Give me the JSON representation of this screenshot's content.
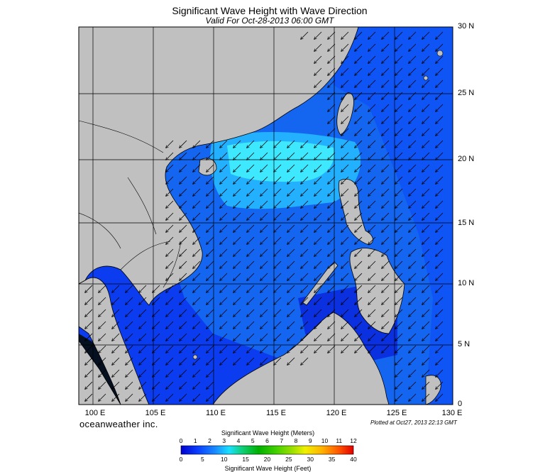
{
  "title": "Significant Wave Height with Wave Direction",
  "subtitle": "Valid For Oct-28-2013 06:00 GMT",
  "brand": "oceanweather inc.",
  "plotted": "Plotted at Oct27, 2013 22:13 GMT",
  "lat_labels": [
    "30 N",
    "25 N",
    "20 N",
    "15 N",
    "10 N",
    "5 N",
    "0"
  ],
  "lon_labels": [
    "100 E",
    "105 E",
    "110 E",
    "115 E",
    "120 E",
    "125 E",
    "130 E"
  ],
  "colorbar": {
    "meters_title": "Significant Wave Height (Meters)",
    "feet_title": "Significant Wave Height (Feet)",
    "meters_ticks": [
      "0",
      "1",
      "2",
      "3",
      "4",
      "5",
      "6",
      "7",
      "8",
      "9",
      "10",
      "11",
      "12"
    ],
    "feet_ticks": [
      "0",
      "5",
      "10",
      "15",
      "20",
      "25",
      "30",
      "35",
      "40"
    ]
  },
  "colors": {
    "land": "#c0c0c0",
    "sea_low": "#0a18d8",
    "sea_mid": "#1478ff",
    "sea_high": "#19ffff",
    "grid": "#000000"
  },
  "wave_direction": "toward southwest"
}
